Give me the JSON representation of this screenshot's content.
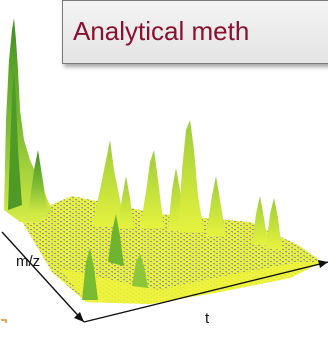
{
  "slide": {
    "title": "Analytical meth"
  },
  "plot": {
    "axis_labels": {
      "mz": "m/z",
      "t": "t"
    },
    "colors": {
      "background": "#ffffff",
      "title_text": "#8b0f2e",
      "peak_green": "#5fa82a",
      "peak_light": "#cde84a",
      "surface_yellow": "#e9f23a",
      "surface_noise": "#8c8c8c",
      "axis": "#111111"
    }
  }
}
